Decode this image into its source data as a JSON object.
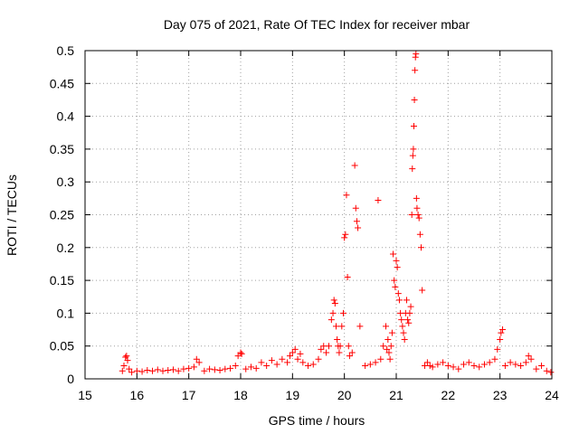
{
  "chart_data": {
    "type": "scatter",
    "title": "Day 075 of 2021, Rate Of TEC Index for receiver mbar",
    "xlabel": "GPS time / hours",
    "ylabel": "ROTI / TECUs",
    "xlim": [
      15,
      24
    ],
    "ylim": [
      0,
      0.5
    ],
    "x_ticks": [
      "15",
      "16",
      "17",
      "18",
      "19",
      "20",
      "21",
      "22",
      "23",
      "24"
    ],
    "y_ticks": [
      "0",
      "0.05",
      "0.1",
      "0.15",
      "0.2",
      "0.25",
      "0.3",
      "0.35",
      "0.4",
      "0.45",
      "0.5"
    ],
    "grid": true,
    "marker": "+",
    "series": [
      {
        "name": "ROTI",
        "color": "#ff0000",
        "x": [
          15.72,
          15.75,
          15.78,
          15.8,
          15.82,
          15.85,
          15.9,
          16.0,
          16.1,
          16.2,
          16.3,
          16.4,
          16.5,
          16.6,
          16.7,
          16.8,
          16.9,
          17.0,
          17.1,
          17.15,
          17.2,
          17.3,
          17.4,
          17.5,
          17.6,
          17.7,
          17.8,
          17.9,
          17.95,
          18.0,
          18.02,
          18.1,
          18.2,
          18.3,
          18.4,
          18.5,
          18.6,
          18.7,
          18.8,
          18.9,
          18.95,
          19.0,
          19.05,
          19.1,
          19.15,
          19.2,
          19.3,
          19.4,
          19.5,
          19.55,
          19.6,
          19.65,
          19.7,
          19.75,
          19.78,
          19.8,
          19.82,
          19.84,
          19.86,
          19.88,
          19.9,
          19.92,
          19.95,
          19.98,
          20.0,
          20.02,
          20.04,
          20.06,
          20.08,
          20.1,
          20.15,
          20.2,
          20.22,
          20.24,
          20.26,
          20.3,
          20.4,
          20.5,
          20.6,
          20.65,
          20.7,
          20.75,
          20.8,
          20.82,
          20.84,
          20.86,
          20.88,
          20.9,
          20.92,
          20.94,
          20.96,
          20.98,
          21.0,
          21.02,
          21.04,
          21.06,
          21.08,
          21.1,
          21.12,
          21.14,
          21.16,
          21.18,
          21.2,
          21.22,
          21.24,
          21.26,
          21.28,
          21.3,
          21.31,
          21.32,
          21.33,
          21.34,
          21.35,
          21.36,
          21.37,
          21.38,
          21.39,
          21.4,
          21.42,
          21.44,
          21.46,
          21.48,
          21.5,
          21.55,
          21.6,
          21.65,
          21.7,
          21.8,
          21.9,
          22.0,
          22.1,
          22.2,
          22.3,
          22.4,
          22.5,
          22.6,
          22.7,
          22.8,
          22.9,
          22.95,
          23.0,
          23.02,
          23.05,
          23.1,
          23.2,
          23.3,
          23.4,
          23.5,
          23.55,
          23.6,
          23.7,
          23.8,
          23.9,
          23.98
        ],
        "y": [
          0.012,
          0.02,
          0.033,
          0.035,
          0.028,
          0.015,
          0.01,
          0.012,
          0.011,
          0.013,
          0.012,
          0.014,
          0.012,
          0.013,
          0.014,
          0.012,
          0.015,
          0.016,
          0.018,
          0.03,
          0.025,
          0.012,
          0.015,
          0.014,
          0.013,
          0.015,
          0.016,
          0.02,
          0.035,
          0.04,
          0.038,
          0.015,
          0.018,
          0.016,
          0.025,
          0.02,
          0.028,
          0.022,
          0.03,
          0.025,
          0.035,
          0.04,
          0.045,
          0.03,
          0.038,
          0.025,
          0.02,
          0.022,
          0.03,
          0.045,
          0.05,
          0.04,
          0.05,
          0.09,
          0.1,
          0.12,
          0.115,
          0.08,
          0.06,
          0.05,
          0.04,
          0.05,
          0.08,
          0.1,
          0.215,
          0.22,
          0.28,
          0.155,
          0.05,
          0.035,
          0.04,
          0.325,
          0.26,
          0.24,
          0.23,
          0.08,
          0.02,
          0.022,
          0.025,
          0.272,
          0.03,
          0.05,
          0.08,
          0.045,
          0.06,
          0.04,
          0.03,
          0.05,
          0.07,
          0.19,
          0.15,
          0.14,
          0.18,
          0.17,
          0.13,
          0.12,
          0.1,
          0.09,
          0.08,
          0.07,
          0.06,
          0.1,
          0.12,
          0.09,
          0.085,
          0.1,
          0.11,
          0.25,
          0.32,
          0.34,
          0.35,
          0.385,
          0.425,
          0.47,
          0.49,
          0.495,
          0.275,
          0.26,
          0.25,
          0.245,
          0.22,
          0.2,
          0.135,
          0.02,
          0.025,
          0.02,
          0.018,
          0.022,
          0.025,
          0.02,
          0.018,
          0.015,
          0.022,
          0.025,
          0.02,
          0.018,
          0.022,
          0.025,
          0.03,
          0.045,
          0.06,
          0.07,
          0.075,
          0.02,
          0.025,
          0.022,
          0.02,
          0.025,
          0.035,
          0.03,
          0.015,
          0.02,
          0.012,
          0.01
        ]
      }
    ]
  }
}
